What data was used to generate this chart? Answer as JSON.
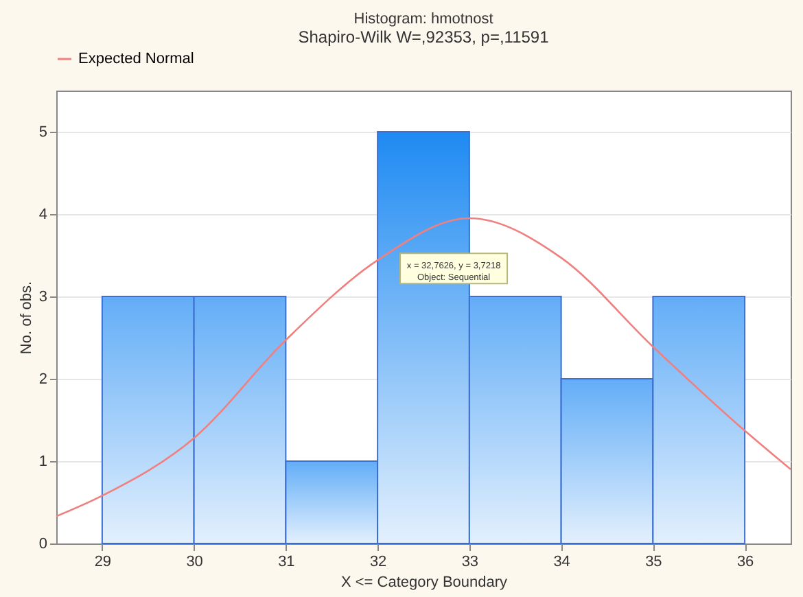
{
  "chart_data": {
    "type": "histogram",
    "title": "Histogram: hmotnost",
    "subtitle": "Shapiro-Wilk W=,92353, p=,11591",
    "xlabel": "X <= Category Boundary",
    "ylabel": "No. of obs.",
    "bins": [
      29,
      30,
      31,
      32,
      33,
      34,
      35,
      36
    ],
    "values": [
      3,
      3,
      1,
      5,
      3,
      2,
      3
    ],
    "colors": [
      "#62adf7",
      "#62adf7",
      "#62adf7",
      "#1e8af2",
      "#62adf7",
      "#62adf7",
      "#62adf7"
    ],
    "series": [
      {
        "name": "Expected Normal",
        "type": "line",
        "color": "#f08080",
        "x": [
          28.5,
          29,
          30,
          31,
          32,
          33,
          34,
          35,
          36,
          36.5
        ],
        "values": [
          0.33,
          0.58,
          1.28,
          2.47,
          3.44,
          3.95,
          3.47,
          2.39,
          1.37,
          0.9
        ]
      }
    ],
    "xlim": [
      28.5,
      36.5
    ],
    "xticks": [
      29,
      30,
      31,
      32,
      33,
      34,
      35,
      36
    ],
    "ylim": [
      0,
      5.5
    ],
    "yticks": [
      0,
      1,
      2,
      3,
      4,
      5
    ],
    "grid": "y",
    "legend": "top",
    "annotations": [
      "x = 32,7626, y = 3,7218",
      "Object: Sequential"
    ]
  }
}
